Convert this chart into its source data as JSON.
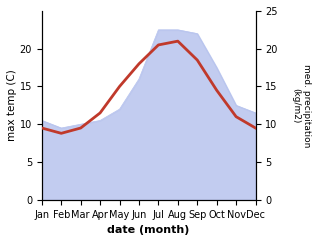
{
  "months": [
    "Jan",
    "Feb",
    "Mar",
    "Apr",
    "May",
    "Jun",
    "Jul",
    "Aug",
    "Sep",
    "Oct",
    "Nov",
    "Dec"
  ],
  "month_positions": [
    1,
    2,
    3,
    4,
    5,
    6,
    7,
    8,
    9,
    10,
    11,
    12
  ],
  "max_temp": [
    9.5,
    8.8,
    9.5,
    11.5,
    15.0,
    18.0,
    20.5,
    21.0,
    18.5,
    14.5,
    11.0,
    9.5
  ],
  "precipitation": [
    10.5,
    9.5,
    10.0,
    10.5,
    12.0,
    16.0,
    22.5,
    22.5,
    22.0,
    17.5,
    12.5,
    11.5
  ],
  "precip_fill_color": "#b8c4ee",
  "temp_line_color": "#c0392b",
  "temp_ylim": [
    0,
    25
  ],
  "temp_yticks": [
    0,
    5,
    10,
    15,
    20
  ],
  "precip_ylim": [
    0,
    25
  ],
  "precip_yticks": [
    0,
    5,
    10,
    15,
    20,
    25
  ],
  "ylabel_left": "max temp (C)",
  "ylabel_right": "med. precipitation\n(kg/m2)",
  "xlabel": "date (month)",
  "bg_color": "#ffffff"
}
